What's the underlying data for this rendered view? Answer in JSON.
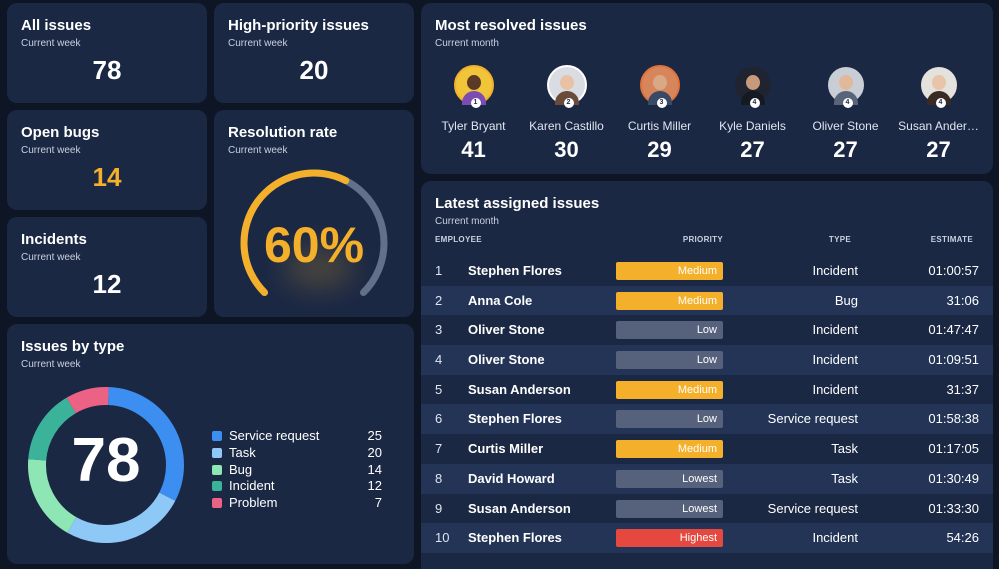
{
  "kpis": {
    "all_issues": {
      "title": "All issues",
      "subtitle": "Current week",
      "value": "78"
    },
    "high_priority": {
      "title": "High-priority issues",
      "subtitle": "Current week",
      "value": "20"
    },
    "open_bugs": {
      "title": "Open bugs",
      "subtitle": "Current week",
      "value": "14",
      "color": "#f5b02b"
    },
    "incidents": {
      "title": "Incidents",
      "subtitle": "Current week",
      "value": "12"
    }
  },
  "resolution_rate": {
    "title": "Resolution rate",
    "subtitle": "Current week",
    "value_text": "60%",
    "fraction": 0.6,
    "accent": "#f5b02b",
    "track": "#63708a"
  },
  "issues_by_type": {
    "title": "Issues by type",
    "subtitle": "Current week",
    "total": "78",
    "items": [
      {
        "label": "Service request",
        "count": "25",
        "value": 25,
        "color": "#3c8ff0"
      },
      {
        "label": "Task",
        "count": "20",
        "value": 20,
        "color": "#8ec8f7"
      },
      {
        "label": "Bug",
        "count": "14",
        "value": 14,
        "color": "#8ee6b5"
      },
      {
        "label": "Incident",
        "count": "12",
        "value": 12,
        "color": "#3bb39a"
      },
      {
        "label": "Problem",
        "count": "7",
        "value": 7,
        "color": "#ec6284"
      }
    ]
  },
  "most_resolved": {
    "title": "Most resolved issues",
    "subtitle": "Current month",
    "people": [
      {
        "name": "Tyler Bryant",
        "count": "41",
        "rank": "1",
        "ring": "#f5b02b",
        "bg": "#f0c53a",
        "skin": "#5a3a26",
        "shirt": "#7b4db3"
      },
      {
        "name": "Karen Castillo",
        "count": "30",
        "rank": "2",
        "ring": "#ffffff",
        "bg": "#d9dce2",
        "skin": "#e8c2a4",
        "shirt": "#6b4a3a"
      },
      {
        "name": "Curtis Miller",
        "count": "29",
        "rank": "3",
        "ring": "#e0733a",
        "bg": "#d6865a",
        "skin": "#d9a986",
        "shirt": "#3a4a66"
      },
      {
        "name": "Kyle Daniels",
        "count": "27",
        "rank": "4",
        "ring": "#1b2844",
        "bg": "#1f2430",
        "skin": "#c89a7c",
        "shirt": "#151922"
      },
      {
        "name": "Oliver Stone",
        "count": "27",
        "rank": "4",
        "ring": "#1b2844",
        "bg": "#c9ced6",
        "skin": "#e2b89a",
        "shirt": "#5a6478"
      },
      {
        "name": "Susan Ander…",
        "count": "27",
        "rank": "4",
        "ring": "#1b2844",
        "bg": "#e4e2dc",
        "skin": "#e8c4a8",
        "shirt": "#3a2a24"
      }
    ]
  },
  "latest_assigned": {
    "title": "Latest assigned issues",
    "subtitle": "Current month",
    "columns": {
      "employee": "EMPLOYEE",
      "priority": "PRIORITY",
      "type": "TYPE",
      "estimate": "ESTIMATE"
    },
    "priority_colors": {
      "Medium": "#f5b02b",
      "Low": "#56627c",
      "Lowest": "#56627c",
      "Highest": "#e5483f"
    },
    "rows": [
      {
        "num": "1",
        "name": "Stephen Flores",
        "priority": "Medium",
        "type": "Incident",
        "estimate": "01:00:57"
      },
      {
        "num": "2",
        "name": "Anna Cole",
        "priority": "Medium",
        "type": "Bug",
        "estimate": "31:06"
      },
      {
        "num": "3",
        "name": "Oliver Stone",
        "priority": "Low",
        "type": "Incident",
        "estimate": "01:47:47"
      },
      {
        "num": "4",
        "name": "Oliver Stone",
        "priority": "Low",
        "type": "Incident",
        "estimate": "01:09:51"
      },
      {
        "num": "5",
        "name": "Susan Anderson",
        "priority": "Medium",
        "type": "Incident",
        "estimate": "31:37"
      },
      {
        "num": "6",
        "name": "Stephen Flores",
        "priority": "Low",
        "type": "Service request",
        "estimate": "01:58:38"
      },
      {
        "num": "7",
        "name": "Curtis Miller",
        "priority": "Medium",
        "type": "Task",
        "estimate": "01:17:05"
      },
      {
        "num": "8",
        "name": "David Howard",
        "priority": "Lowest",
        "type": "Task",
        "estimate": "01:30:49"
      },
      {
        "num": "9",
        "name": "Susan Anderson",
        "priority": "Lowest",
        "type": "Service request",
        "estimate": "01:33:30"
      },
      {
        "num": "10",
        "name": "Stephen Flores",
        "priority": "Highest",
        "type": "Incident",
        "estimate": "54:26"
      }
    ]
  }
}
